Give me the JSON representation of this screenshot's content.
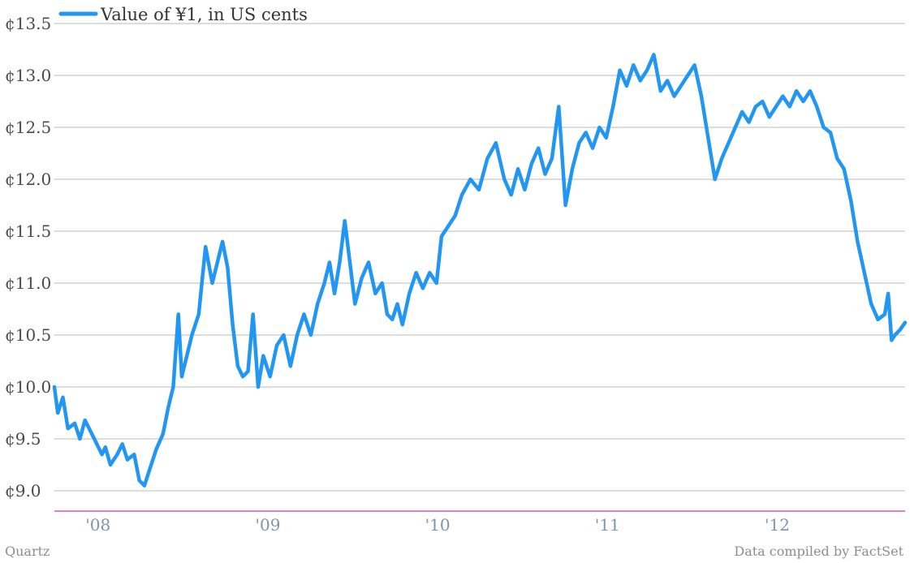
{
  "colors": {
    "series": "#2196f3",
    "baseline": "#d65aa0",
    "grid": "#b9b9b9"
  },
  "footer": {
    "left": "Quartz",
    "right": "Data compiled by FactSet"
  },
  "chart_data": {
    "type": "line",
    "series_name": "Value of ¥1, in US cents",
    "ylim": [
      8.8,
      13.5
    ],
    "y_ticks": [
      {
        "value": 13.5,
        "label": "¢13.5"
      },
      {
        "value": 13.0,
        "label": "¢13.0"
      },
      {
        "value": 12.5,
        "label": "¢12.5"
      },
      {
        "value": 12.0,
        "label": "¢12.0"
      },
      {
        "value": 11.5,
        "label": "¢11.5"
      },
      {
        "value": 11.0,
        "label": "¢11.0"
      },
      {
        "value": 10.5,
        "label": "¢10.5"
      },
      {
        "value": 10.0,
        "label": "¢10.0"
      },
      {
        "value": 9.5,
        "label": "¢9.5"
      },
      {
        "value": 9.0,
        "label": "¢9.0"
      }
    ],
    "xlim": [
      2007.75,
      2012.76
    ],
    "x_ticks": [
      {
        "value": 2008.0,
        "label": "'08"
      },
      {
        "value": 2009.0,
        "label": "'09"
      },
      {
        "value": 2010.0,
        "label": "'10"
      },
      {
        "value": 2011.0,
        "label": "'11"
      },
      {
        "value": 2012.0,
        "label": "'12"
      }
    ],
    "legend_position": "top-left",
    "grid": true,
    "points": [
      [
        2007.75,
        10.0
      ],
      [
        2007.77,
        9.75
      ],
      [
        2007.8,
        9.9
      ],
      [
        2007.83,
        9.6
      ],
      [
        2007.87,
        9.65
      ],
      [
        2007.9,
        9.5
      ],
      [
        2007.93,
        9.68
      ],
      [
        2007.97,
        9.55
      ],
      [
        2008.0,
        9.45
      ],
      [
        2008.03,
        9.35
      ],
      [
        2008.05,
        9.42
      ],
      [
        2008.08,
        9.25
      ],
      [
        2008.12,
        9.35
      ],
      [
        2008.15,
        9.45
      ],
      [
        2008.18,
        9.3
      ],
      [
        2008.22,
        9.35
      ],
      [
        2008.25,
        9.1
      ],
      [
        2008.28,
        9.05
      ],
      [
        2008.31,
        9.2
      ],
      [
        2008.35,
        9.4
      ],
      [
        2008.39,
        9.55
      ],
      [
        2008.42,
        9.8
      ],
      [
        2008.45,
        10.0
      ],
      [
        2008.48,
        10.7
      ],
      [
        2008.5,
        10.1
      ],
      [
        2008.53,
        10.3
      ],
      [
        2008.56,
        10.5
      ],
      [
        2008.6,
        10.7
      ],
      [
        2008.64,
        11.35
      ],
      [
        2008.68,
        11.0
      ],
      [
        2008.71,
        11.2
      ],
      [
        2008.74,
        11.4
      ],
      [
        2008.77,
        11.15
      ],
      [
        2008.8,
        10.6
      ],
      [
        2008.83,
        10.2
      ],
      [
        2008.86,
        10.1
      ],
      [
        2008.89,
        10.15
      ],
      [
        2008.92,
        10.7
      ],
      [
        2008.95,
        10.0
      ],
      [
        2008.98,
        10.3
      ],
      [
        2009.02,
        10.1
      ],
      [
        2009.06,
        10.4
      ],
      [
        2009.1,
        10.5
      ],
      [
        2009.14,
        10.2
      ],
      [
        2009.18,
        10.5
      ],
      [
        2009.22,
        10.7
      ],
      [
        2009.26,
        10.5
      ],
      [
        2009.3,
        10.8
      ],
      [
        2009.34,
        11.0
      ],
      [
        2009.37,
        11.2
      ],
      [
        2009.4,
        10.9
      ],
      [
        2009.43,
        11.2
      ],
      [
        2009.46,
        11.6
      ],
      [
        2009.49,
        11.2
      ],
      [
        2009.52,
        10.8
      ],
      [
        2009.56,
        11.05
      ],
      [
        2009.6,
        11.2
      ],
      [
        2009.64,
        10.9
      ],
      [
        2009.68,
        11.0
      ],
      [
        2009.71,
        10.7
      ],
      [
        2009.74,
        10.65
      ],
      [
        2009.77,
        10.8
      ],
      [
        2009.8,
        10.6
      ],
      [
        2009.84,
        10.9
      ],
      [
        2009.88,
        11.1
      ],
      [
        2009.92,
        10.95
      ],
      [
        2009.96,
        11.1
      ],
      [
        2010.0,
        11.0
      ],
      [
        2010.03,
        11.45
      ],
      [
        2010.07,
        11.55
      ],
      [
        2010.11,
        11.65
      ],
      [
        2010.15,
        11.85
      ],
      [
        2010.2,
        12.0
      ],
      [
        2010.25,
        11.9
      ],
      [
        2010.3,
        12.2
      ],
      [
        2010.35,
        12.35
      ],
      [
        2010.4,
        12.0
      ],
      [
        2010.44,
        11.85
      ],
      [
        2010.48,
        12.1
      ],
      [
        2010.52,
        11.9
      ],
      [
        2010.56,
        12.15
      ],
      [
        2010.6,
        12.3
      ],
      [
        2010.64,
        12.05
      ],
      [
        2010.68,
        12.2
      ],
      [
        2010.72,
        12.7
      ],
      [
        2010.76,
        11.75
      ],
      [
        2010.8,
        12.1
      ],
      [
        2010.84,
        12.35
      ],
      [
        2010.88,
        12.45
      ],
      [
        2010.92,
        12.3
      ],
      [
        2010.96,
        12.5
      ],
      [
        2011.0,
        12.4
      ],
      [
        2011.04,
        12.7
      ],
      [
        2011.08,
        13.05
      ],
      [
        2011.12,
        12.9
      ],
      [
        2011.16,
        13.1
      ],
      [
        2011.2,
        12.95
      ],
      [
        2011.24,
        13.05
      ],
      [
        2011.28,
        13.2
      ],
      [
        2011.32,
        12.85
      ],
      [
        2011.36,
        12.95
      ],
      [
        2011.4,
        12.8
      ],
      [
        2011.44,
        12.9
      ],
      [
        2011.48,
        13.0
      ],
      [
        2011.52,
        13.1
      ],
      [
        2011.56,
        12.8
      ],
      [
        2011.6,
        12.4
      ],
      [
        2011.64,
        12.0
      ],
      [
        2011.68,
        12.2
      ],
      [
        2011.72,
        12.35
      ],
      [
        2011.76,
        12.5
      ],
      [
        2011.8,
        12.65
      ],
      [
        2011.84,
        12.55
      ],
      [
        2011.88,
        12.7
      ],
      [
        2011.92,
        12.75
      ],
      [
        2011.96,
        12.6
      ],
      [
        2012.0,
        12.7
      ],
      [
        2012.04,
        12.8
      ],
      [
        2012.08,
        12.7
      ],
      [
        2012.12,
        12.85
      ],
      [
        2012.16,
        12.75
      ],
      [
        2012.2,
        12.85
      ],
      [
        2012.24,
        12.7
      ],
      [
        2012.28,
        12.5
      ],
      [
        2012.32,
        12.45
      ],
      [
        2012.36,
        12.2
      ],
      [
        2012.4,
        12.1
      ],
      [
        2012.44,
        11.8
      ],
      [
        2012.48,
        11.4
      ],
      [
        2012.52,
        11.1
      ],
      [
        2012.56,
        10.8
      ],
      [
        2012.6,
        10.65
      ],
      [
        2012.64,
        10.7
      ],
      [
        2012.66,
        10.9
      ],
      [
        2012.68,
        10.45
      ],
      [
        2012.7,
        10.5
      ],
      [
        2012.73,
        10.55
      ],
      [
        2012.76,
        10.62
      ]
    ]
  }
}
